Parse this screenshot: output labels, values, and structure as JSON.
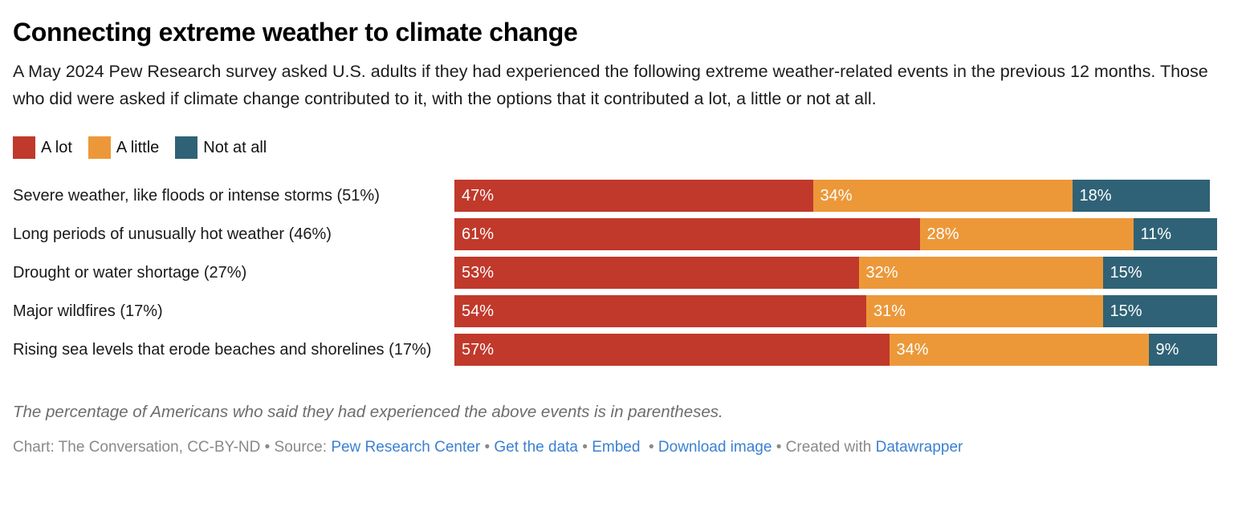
{
  "header": {
    "title": "Connecting extreme weather to climate change",
    "description": "A May 2024 Pew Research survey asked U.S. adults if they had experienced the following extreme weather-related events in the previous 12 months. Those who did were asked if climate change contributed to it, with the options that it contributed a lot, a little or not at all."
  },
  "chart_data": {
    "type": "bar",
    "orientation": "horizontal",
    "stacked": true,
    "unit": "%",
    "xlim": [
      0,
      100
    ],
    "grid": false,
    "legend_position": "top-left",
    "categories": [
      "Severe weather, like floods or intense storms (51%)",
      "Long periods of unusually hot weather (46%)",
      "Drought or water shortage (27%)",
      "Major wildfires (17%)",
      "Rising sea levels that erode beaches and shorelines (17%)"
    ],
    "series": [
      {
        "name": "A lot",
        "color": "#c0392b",
        "values": [
          47,
          61,
          53,
          54,
          57
        ]
      },
      {
        "name": "A little",
        "color": "#ec9839",
        "values": [
          34,
          28,
          32,
          31,
          34
        ]
      },
      {
        "name": "Not at all",
        "color": "#2f6276",
        "values": [
          18,
          11,
          15,
          15,
          9
        ]
      }
    ]
  },
  "footer": {
    "note": "The percentage of Americans who said they had experienced the above events is in parentheses.",
    "attribution": [
      {
        "text": "Chart: The Conversation, CC-BY-ND • Source: ",
        "link": false
      },
      {
        "text": "Pew Research Center",
        "link": true
      },
      {
        "text": " • ",
        "link": false
      },
      {
        "text": "Get the data",
        "link": true
      },
      {
        "text": " • ",
        "link": false
      },
      {
        "text": "Embed",
        "link": true
      },
      {
        "text": "  • ",
        "link": false
      },
      {
        "text": "Download image",
        "link": true
      },
      {
        "text": " • Created with ",
        "link": false
      },
      {
        "text": "Datawrapper",
        "link": true
      }
    ]
  },
  "colors": {
    "a_lot": "#c0392b",
    "a_little": "#ec9839",
    "not_at_all": "#2f6276",
    "link": "#3b80d1"
  }
}
